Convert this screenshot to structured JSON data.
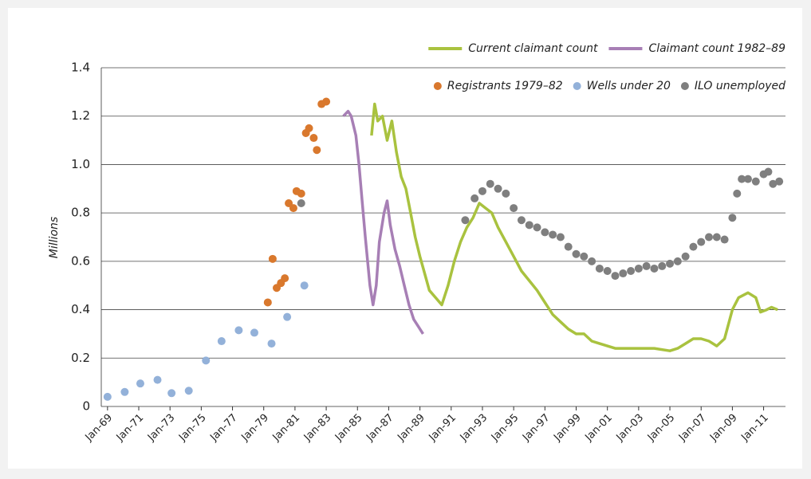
{
  "chart_data": {
    "type": "line",
    "y_label": "Millions",
    "xlim": [
      1968.6,
      2012.4
    ],
    "ylim": [
      0,
      1.4
    ],
    "yticks": [
      0,
      0.2,
      0.4,
      0.6,
      0.8,
      {
        "value": 1,
        "label": "1.0"
      },
      1.2,
      1.4
    ],
    "xticks": [
      {
        "value": 1969,
        "label": "Jan-69"
      },
      {
        "value": 1971,
        "label": "Jan-71"
      },
      {
        "value": 1973,
        "label": "Jan-73"
      },
      {
        "value": 1975,
        "label": "Jan-75"
      },
      {
        "value": 1977,
        "label": "Jan-77"
      },
      {
        "value": 1979,
        "label": "Jan-79"
      },
      {
        "value": 1981,
        "label": "Jan-81"
      },
      {
        "value": 1983,
        "label": "Jan-83"
      },
      {
        "value": 1985,
        "label": "Jan-85"
      },
      {
        "value": 1987,
        "label": "Jan-87"
      },
      {
        "value": 1989,
        "label": "Jan-89"
      },
      {
        "value": 1991,
        "label": "Jan-91"
      },
      {
        "value": 1993,
        "label": "Jan-93"
      },
      {
        "value": 1995,
        "label": "Jan-95"
      },
      {
        "value": 1997,
        "label": "Jan-97"
      },
      {
        "value": 1999,
        "label": "Jan-99"
      },
      {
        "value": 2001,
        "label": "Jan-01"
      },
      {
        "value": 2003,
        "label": "Jan-03"
      },
      {
        "value": 2005,
        "label": "Jan-05"
      },
      {
        "value": 2007,
        "label": "Jan-07"
      },
      {
        "value": 2009,
        "label": "Jan-09"
      },
      {
        "value": 2011,
        "label": "Jan-11"
      }
    ],
    "grid": true,
    "series": [
      {
        "name": "Current claimant count",
        "type": "line",
        "color": "#a9c23f",
        "x": [
          1985.9,
          1986.1,
          1986.3,
          1986.6,
          1986.9,
          1987.2,
          1987.5,
          1987.8,
          1988.1,
          1988.4,
          1988.7,
          1989.0,
          1989.3,
          1989.6,
          1990.0,
          1990.4,
          1990.8,
          1991.2,
          1991.6,
          1992.0,
          1992.4,
          1992.8,
          1993.2,
          1993.6,
          1994.0,
          1994.5,
          1995.0,
          1995.5,
          1996.0,
          1996.5,
          1997.0,
          1997.5,
          1998.0,
          1998.5,
          1999.0,
          1999.5,
          2000.0,
          2000.5,
          2001.0,
          2001.5,
          2002.0,
          2003.0,
          2004.0,
          2005.0,
          2005.5,
          2006.0,
          2006.5,
          2007.0,
          2007.5,
          2008.0,
          2008.5,
          2009.0,
          2009.4,
          2010.0,
          2010.5,
          2010.8,
          2011.2,
          2011.5,
          2011.9
        ],
        "values": [
          1.12,
          1.25,
          1.18,
          1.2,
          1.1,
          1.18,
          1.05,
          0.95,
          0.9,
          0.8,
          0.7,
          0.62,
          0.55,
          0.48,
          0.45,
          0.42,
          0.5,
          0.6,
          0.68,
          0.74,
          0.78,
          0.84,
          0.82,
          0.8,
          0.74,
          0.68,
          0.62,
          0.56,
          0.52,
          0.48,
          0.43,
          0.38,
          0.35,
          0.32,
          0.3,
          0.3,
          0.27,
          0.26,
          0.25,
          0.24,
          0.24,
          0.24,
          0.24,
          0.23,
          0.24,
          0.26,
          0.28,
          0.28,
          0.27,
          0.25,
          0.28,
          0.4,
          0.45,
          0.47,
          0.45,
          0.39,
          0.4,
          0.41,
          0.4
        ]
      },
      {
        "name": "Claimant count 1982–89",
        "type": "line",
        "color": "#a77fb5",
        "x": [
          1984.1,
          1984.4,
          1984.6,
          1984.9,
          1985.1,
          1985.3,
          1985.5,
          1985.8,
          1986.0,
          1986.2,
          1986.4,
          1986.7,
          1986.9,
          1987.1,
          1987.4,
          1987.7,
          1988.0,
          1988.3,
          1988.6,
          1988.9,
          1989.2
        ],
        "values": [
          1.2,
          1.22,
          1.2,
          1.12,
          1.0,
          0.85,
          0.7,
          0.5,
          0.42,
          0.5,
          0.68,
          0.8,
          0.85,
          0.75,
          0.65,
          0.58,
          0.5,
          0.42,
          0.36,
          0.33,
          0.3
        ]
      },
      {
        "name": "Registrants 1979–82",
        "type": "scatter",
        "color": "#d9782d",
        "x": [
          1979.26,
          1979.57,
          1979.83,
          1980.1,
          1980.35,
          1980.6,
          1980.9,
          1981.1,
          1981.4,
          1981.7,
          1981.9,
          1982.2,
          1982.4,
          1982.7,
          1983.0
        ],
        "values": [
          0.43,
          0.61,
          0.49,
          0.51,
          0.53,
          0.84,
          0.82,
          0.89,
          0.88,
          1.13,
          1.15,
          1.11,
          1.06,
          1.25,
          1.26
        ]
      },
      {
        "name": "Wells under 20",
        "type": "scatter",
        "color": "#93b1d9",
        "x": [
          1969.0,
          1970.1,
          1971.1,
          1972.2,
          1973.1,
          1974.2,
          1975.3,
          1976.3,
          1977.4,
          1978.4,
          1979.5,
          1980.5,
          1981.6
        ],
        "values": [
          0.04,
          0.06,
          0.095,
          0.11,
          0.055,
          0.065,
          0.19,
          0.27,
          0.315,
          0.305,
          0.26,
          0.37,
          0.5
        ]
      },
      {
        "name": "ILO unemployed",
        "type": "scatter",
        "color": "#7f7f7f",
        "x": [
          1981.4,
          1991.9,
          1992.5,
          1993.0,
          1993.5,
          1994.0,
          1994.5,
          1995.0,
          1995.5,
          1996.0,
          1996.5,
          1997.0,
          1997.5,
          1998.0,
          1998.5,
          1999.0,
          1999.5,
          2000.0,
          2000.5,
          2001.0,
          2001.5,
          2002.0,
          2002.5,
          2003.0,
          2003.5,
          2004.0,
          2004.5,
          2005.0,
          2005.5,
          2006.0,
          2006.5,
          2007.0,
          2007.5,
          2008.0,
          2008.5,
          2009.0,
          2009.3,
          2009.6,
          2010.0,
          2010.5,
          2011.0,
          2011.3,
          2011.6,
          2012.0
        ],
        "values": [
          0.84,
          0.77,
          0.86,
          0.89,
          0.92,
          0.9,
          0.88,
          0.82,
          0.77,
          0.75,
          0.74,
          0.72,
          0.71,
          0.7,
          0.66,
          0.63,
          0.62,
          0.6,
          0.57,
          0.56,
          0.54,
          0.55,
          0.56,
          0.57,
          0.58,
          0.57,
          0.58,
          0.59,
          0.6,
          0.62,
          0.66,
          0.68,
          0.7,
          0.7,
          0.69,
          0.78,
          0.88,
          0.94,
          0.94,
          0.93,
          0.96,
          0.97,
          0.92,
          0.93
        ]
      }
    ]
  }
}
